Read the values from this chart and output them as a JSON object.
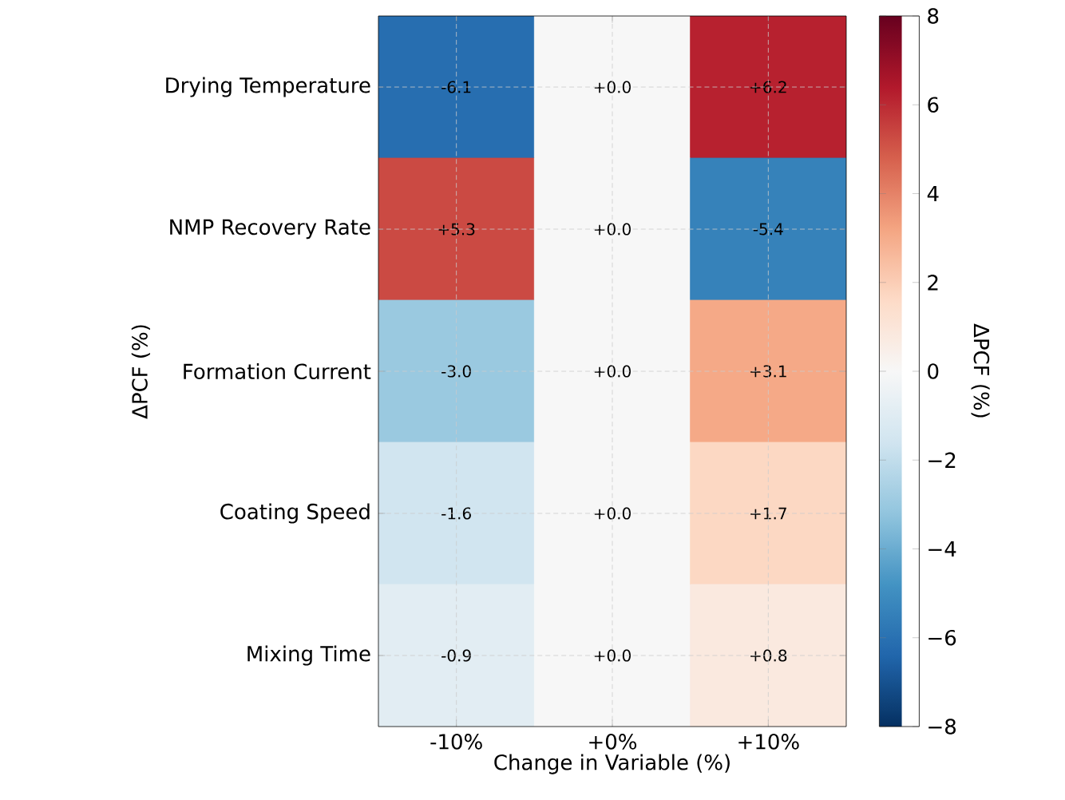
{
  "chart_data": {
    "type": "heatmap",
    "xlabel": "Change in Variable (%)",
    "ylabel": "ΔPCF (%)",
    "clabel": "ΔPCF (%)",
    "categories": [
      "-10%",
      "+0%",
      "+10%"
    ],
    "y_categories": [
      "Drying Temperature",
      "NMP Recovery Rate",
      "Formation Current",
      "Coating Speed",
      "Mixing Time"
    ],
    "cells": [
      [
        -6.1,
        0.0,
        6.2
      ],
      [
        5.3,
        0.0,
        -5.4
      ],
      [
        -3.0,
        0.0,
        3.1
      ],
      [
        -1.6,
        0.0,
        1.7
      ],
      [
        -0.9,
        0.0,
        0.8
      ]
    ],
    "cell_labels": [
      [
        "-6.1",
        "+0.0",
        "+6.2"
      ],
      [
        "+5.3",
        "+0.0",
        "-5.4"
      ],
      [
        "-3.0",
        "+0.0",
        "+3.1"
      ],
      [
        "-1.6",
        "+0.0",
        "+1.7"
      ],
      [
        "-0.9",
        "+0.0",
        "+0.8"
      ]
    ],
    "clim": [
      -8,
      8
    ],
    "cticks": [
      {
        "value": -8,
        "label": "−8"
      },
      {
        "value": -6,
        "label": "−6"
      },
      {
        "value": -4,
        "label": "−4"
      },
      {
        "value": -2,
        "label": "−2"
      },
      0,
      2,
      4,
      6,
      8
    ],
    "grid": true
  }
}
